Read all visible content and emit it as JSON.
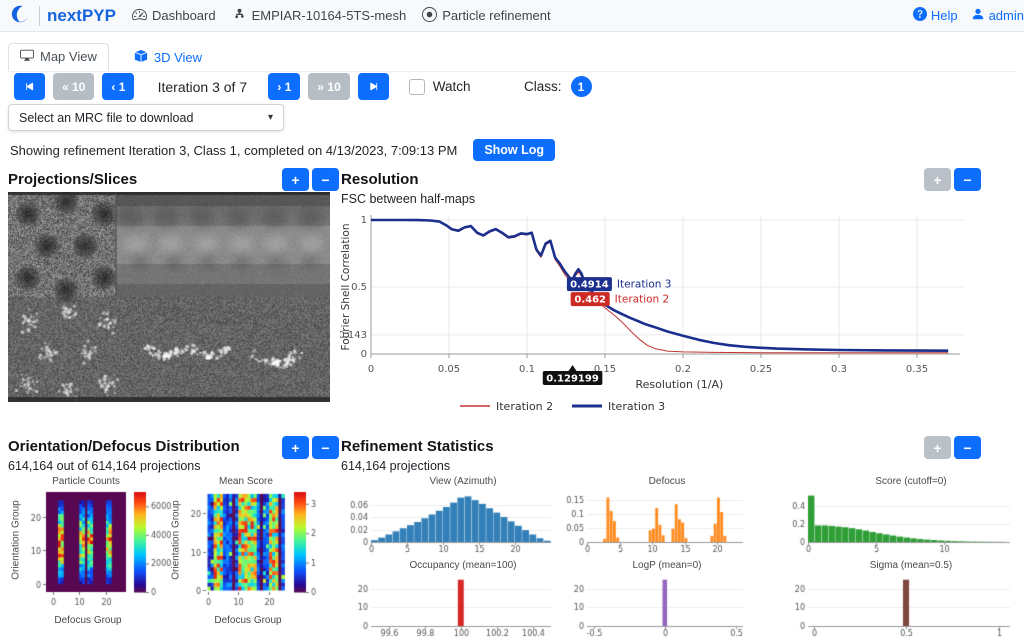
{
  "navbar": {
    "brand": "nextPYP",
    "items": [
      {
        "label": "Dashboard"
      },
      {
        "label": "EMPIAR-10164-5TS-mesh"
      },
      {
        "label": "Particle refinement"
      }
    ],
    "help_label": "Help",
    "user_label": "admin"
  },
  "tabs": {
    "map_view": "Map View",
    "view_3d": "3D View"
  },
  "controls": {
    "back_10": "« 10",
    "back_1": "‹ 1",
    "iteration_label": "Iteration 3 of 7",
    "fwd_1": "› 1",
    "fwd_10": "» 10",
    "watch": "Watch",
    "class_label": "Class:",
    "class_value": "1",
    "mrc_placeholder": "Select an MRC file to download"
  },
  "ui": {
    "plus": "+",
    "minus": "−",
    "caret": "▾"
  },
  "status": {
    "text": "Showing refinement Iteration 3, Class 1, completed on 4/13/2023, 7:09:13 PM",
    "show_log": "Show Log"
  },
  "panels": {
    "projections": {
      "title": "Projections/Slices"
    },
    "resolution": {
      "title": "Resolution",
      "subtitle": "FSC between half-maps"
    },
    "distribution": {
      "title": "Orientation/Defocus Distribution",
      "subtitle": "614,164 out of 614,164 projections"
    },
    "statistics": {
      "title": "Refinement Statistics",
      "subtitle": "614,164 projections"
    }
  },
  "colors": {
    "primary": "#0d6efd",
    "disabled": "#b9c0c7",
    "iter2": "#c23430",
    "iter3": "#1b2f8e"
  },
  "chart_data": [
    {
      "id": "fsc",
      "type": "line",
      "title": "FSC between half-maps",
      "xlabel": "Resolution (1/A)",
      "ylabel": "Fourier Shell Correlation",
      "xticks": [
        0,
        0.05,
        0.1,
        0.15,
        0.2,
        0.25,
        0.3,
        0.35
      ],
      "yticks": [
        0,
        0.143,
        0.5,
        1
      ],
      "xlim": [
        0,
        0.38
      ],
      "ylim": [
        0,
        1.05
      ],
      "legend_position": "bottom",
      "series": [
        {
          "name": "Iteration 2",
          "color": "#c23430",
          "width": 1,
          "points": [
            [
              0,
              1
            ],
            [
              0.02,
              1
            ],
            [
              0.03,
              0.998
            ],
            [
              0.038,
              0.995
            ],
            [
              0.044,
              0.986
            ],
            [
              0.048,
              0.958
            ],
            [
              0.052,
              0.926
            ],
            [
              0.056,
              0.915
            ],
            [
              0.06,
              0.94
            ],
            [
              0.064,
              0.95
            ],
            [
              0.068,
              0.898
            ],
            [
              0.072,
              0.878
            ],
            [
              0.076,
              0.908
            ],
            [
              0.08,
              0.926
            ],
            [
              0.084,
              0.898
            ],
            [
              0.088,
              0.864
            ],
            [
              0.092,
              0.87
            ],
            [
              0.096,
              0.893
            ],
            [
              0.1,
              0.888
            ],
            [
              0.103,
              0.898
            ],
            [
              0.106,
              0.768
            ],
            [
              0.109,
              0.72
            ],
            [
              0.112,
              0.815
            ],
            [
              0.115,
              0.835
            ],
            [
              0.118,
              0.705
            ],
            [
              0.121,
              0.655
            ],
            [
              0.124,
              0.598
            ],
            [
              0.127,
              0.552
            ],
            [
              0.129,
              0.525
            ],
            [
              0.131,
              0.582
            ],
            [
              0.133,
              0.612
            ],
            [
              0.135,
              0.578
            ],
            [
              0.137,
              0.508
            ],
            [
              0.14,
              0.462
            ],
            [
              0.144,
              0.41
            ],
            [
              0.148,
              0.365
            ],
            [
              0.152,
              0.325
            ],
            [
              0.157,
              0.28
            ],
            [
              0.162,
              0.225
            ],
            [
              0.167,
              0.165
            ],
            [
              0.172,
              0.11
            ],
            [
              0.177,
              0.066
            ],
            [
              0.182,
              0.04
            ],
            [
              0.19,
              0.022
            ],
            [
              0.2,
              0.016
            ],
            [
              0.22,
              0.012
            ],
            [
              0.25,
              0.01
            ],
            [
              0.3,
              0.01
            ],
            [
              0.37,
              0.01
            ]
          ]
        },
        {
          "name": "Iteration 3",
          "color": "#1b2f8e",
          "width": 2.6,
          "points": [
            [
              0,
              1
            ],
            [
              0.01,
              1
            ],
            [
              0.02,
              1
            ],
            [
              0.03,
              0.999
            ],
            [
              0.038,
              0.996
            ],
            [
              0.044,
              0.988
            ],
            [
              0.048,
              0.962
            ],
            [
              0.052,
              0.93
            ],
            [
              0.056,
              0.92
            ],
            [
              0.06,
              0.945
            ],
            [
              0.064,
              0.955
            ],
            [
              0.068,
              0.905
            ],
            [
              0.072,
              0.885
            ],
            [
              0.076,
              0.915
            ],
            [
              0.08,
              0.932
            ],
            [
              0.084,
              0.905
            ],
            [
              0.088,
              0.872
            ],
            [
              0.092,
              0.878
            ],
            [
              0.096,
              0.9
            ],
            [
              0.1,
              0.895
            ],
            [
              0.103,
              0.905
            ],
            [
              0.106,
              0.78
            ],
            [
              0.109,
              0.735
            ],
            [
              0.112,
              0.825
            ],
            [
              0.115,
              0.845
            ],
            [
              0.118,
              0.72
            ],
            [
              0.121,
              0.675
            ],
            [
              0.124,
              0.62
            ],
            [
              0.127,
              0.575
            ],
            [
              0.129,
              0.548
            ],
            [
              0.131,
              0.6
            ],
            [
              0.133,
              0.632
            ],
            [
              0.135,
              0.598
            ],
            [
              0.137,
              0.53
            ],
            [
              0.14,
              0.4914
            ],
            [
              0.143,
              0.445
            ],
            [
              0.147,
              0.4
            ],
            [
              0.151,
              0.36
            ],
            [
              0.156,
              0.325
            ],
            [
              0.161,
              0.297
            ],
            [
              0.166,
              0.27
            ],
            [
              0.171,
              0.246
            ],
            [
              0.176,
              0.222
            ],
            [
              0.182,
              0.2
            ],
            [
              0.19,
              0.168
            ],
            [
              0.2,
              0.136
            ],
            [
              0.21,
              0.106
            ],
            [
              0.22,
              0.082
            ],
            [
              0.23,
              0.065
            ],
            [
              0.24,
              0.054
            ],
            [
              0.25,
              0.046
            ],
            [
              0.26,
              0.04
            ],
            [
              0.28,
              0.034
            ],
            [
              0.3,
              0.03
            ],
            [
              0.33,
              0.027
            ],
            [
              0.37,
              0.025
            ]
          ]
        }
      ],
      "annotations": [
        {
          "label": "0.4914",
          "series": "Iteration 3",
          "x": 0.14,
          "y": 0.4914,
          "color": "#1b2f8e",
          "dy": -4
        },
        {
          "label": "0.462",
          "series": "Iteration 2",
          "x": 0.1405,
          "y": 0.462,
          "color": "#cc2a25",
          "dy": 7
        }
      ],
      "tooltip": {
        "label": "0.129199",
        "x": 0.129199
      }
    },
    {
      "id": "particle_counts",
      "type": "heatmap",
      "title": "Particle Counts",
      "xlabel": "Defocus Group",
      "ylabel": "Orientation Group",
      "xticks": [
        0,
        10,
        20
      ],
      "yticks": [
        0,
        10,
        20
      ],
      "domain": [
        -2.5,
        27.5
      ],
      "colorbar_ticks": [
        0,
        2000,
        4000,
        6000
      ],
      "vmax": 7000,
      "background_value": 0,
      "stripes": [
        {
          "cols": [
            2,
            3
          ],
          "peak": 7000
        },
        {
          "cols": [
            10,
            11
          ],
          "peak": 5300
        },
        {
          "cols": [
            13,
            14
          ],
          "peak": 5700
        },
        {
          "cols": [
            20,
            21
          ],
          "peak": 5700
        }
      ]
    },
    {
      "id": "mean_score",
      "type": "heatmap",
      "title": "Mean Score",
      "xlabel": "Defocus Group",
      "ylabel": "Orientation Group",
      "xticks": [
        0,
        10,
        20
      ],
      "yticks": [
        0,
        10,
        20
      ],
      "domain": [
        -0.5,
        25.5
      ],
      "colorbar_ticks": [
        0,
        1,
        2,
        3
      ],
      "vmax": 3.4,
      "base_range": [
        0.35,
        1.1
      ],
      "stripe_range": [
        1.2,
        3.3
      ],
      "stripe_cols": [
        2,
        3,
        4,
        10,
        11,
        12,
        13,
        14,
        15,
        20,
        21,
        22
      ],
      "zero_cols": [
        8,
        17,
        23
      ]
    },
    {
      "id": "view_azimuth",
      "type": "bar",
      "title": "View (Azimuth)",
      "color": "#3380b8",
      "x0": 0,
      "dx": 1,
      "values": [
        0.003,
        0.007,
        0.012,
        0.017,
        0.022,
        0.027,
        0.032,
        0.038,
        0.044,
        0.05,
        0.056,
        0.063,
        0.071,
        0.073,
        0.067,
        0.061,
        0.054,
        0.047,
        0.04,
        0.033,
        0.026,
        0.019,
        0.012,
        0.006,
        0.002
      ],
      "xlim": [
        0,
        25
      ],
      "ylim": [
        0,
        0.08
      ],
      "yticks": [
        0,
        0.02,
        0.04,
        0.06
      ],
      "xticks": [
        0,
        5,
        10,
        15,
        20
      ]
    },
    {
      "id": "defocus",
      "type": "bar",
      "title": "Defocus",
      "color": "#ff8b1f",
      "barw": 0.5,
      "bars": [
        [
          2.5,
          0.012
        ],
        [
          3,
          0.16
        ],
        [
          3.5,
          0.112
        ],
        [
          4,
          0.075
        ],
        [
          4.5,
          0.016
        ],
        [
          9.5,
          0.042
        ],
        [
          10,
          0.048
        ],
        [
          10.5,
          0.122
        ],
        [
          11,
          0.062
        ],
        [
          11.5,
          0.024
        ],
        [
          13,
          0.048
        ],
        [
          13.5,
          0.136
        ],
        [
          14,
          0.082
        ],
        [
          14.5,
          0.07
        ],
        [
          15,
          0.014
        ],
        [
          19,
          0.022
        ],
        [
          19.5,
          0.066
        ],
        [
          20,
          0.16
        ],
        [
          20.5,
          0.108
        ],
        [
          21,
          0.022
        ]
      ],
      "xlim": [
        0,
        24
      ],
      "ylim": [
        0,
        0.18
      ],
      "yticks": [
        0,
        0.05,
        0.1,
        0.15
      ],
      "xticks": [
        0,
        5,
        10,
        15,
        20
      ]
    },
    {
      "id": "score",
      "type": "bar",
      "title": "Score (cutoff=0)",
      "color": "#2f9e37",
      "x0": 0,
      "dx": 0.5,
      "values": [
        0.52,
        0.185,
        0.185,
        0.18,
        0.172,
        0.165,
        0.155,
        0.142,
        0.128,
        0.112,
        0.098,
        0.085,
        0.072,
        0.06,
        0.05,
        0.041,
        0.033,
        0.027,
        0.022,
        0.017,
        0.013,
        0.01,
        0.008,
        0.006,
        0.005,
        0.004,
        0.003,
        0.002,
        0.002
      ],
      "xlim": [
        0,
        14.8
      ],
      "ylim": [
        0,
        0.56
      ],
      "yticks": [
        0,
        0.2,
        0.4
      ],
      "xticks": [
        0,
        5,
        10
      ]
    },
    {
      "id": "occupancy",
      "type": "bar",
      "title": "Occupancy (mean=100)",
      "color": "#d62728",
      "centered": true,
      "barw": 0.035,
      "bars": [
        [
          100,
          25
        ]
      ],
      "xlim": [
        99.5,
        100.5
      ],
      "ylim": [
        0,
        27
      ],
      "yticks": [
        0,
        10,
        20
      ],
      "xticks": [
        99.6,
        99.8,
        100,
        100.2,
        100.4
      ]
    },
    {
      "id": "logp",
      "type": "bar",
      "title": "LogP (mean=0)",
      "color": "#9467bd",
      "centered": true,
      "barw": 0.035,
      "bars": [
        [
          0,
          25
        ]
      ],
      "xlim": [
        -0.55,
        0.55
      ],
      "ylim": [
        0,
        27
      ],
      "yticks": [
        0,
        10,
        20
      ],
      "xticks": [
        -0.5,
        0,
        0.5
      ]
    },
    {
      "id": "sigma",
      "type": "bar",
      "title": "Sigma (mean=0.5)",
      "color": "#7e4a3f",
      "centered": true,
      "barw": 0.035,
      "bars": [
        [
          0.5,
          25
        ]
      ],
      "xlim": [
        -0.03,
        1.06
      ],
      "ylim": [
        0,
        27
      ],
      "yticks": [
        0,
        10,
        20
      ],
      "xticks": [
        0,
        0.5,
        1
      ]
    }
  ]
}
